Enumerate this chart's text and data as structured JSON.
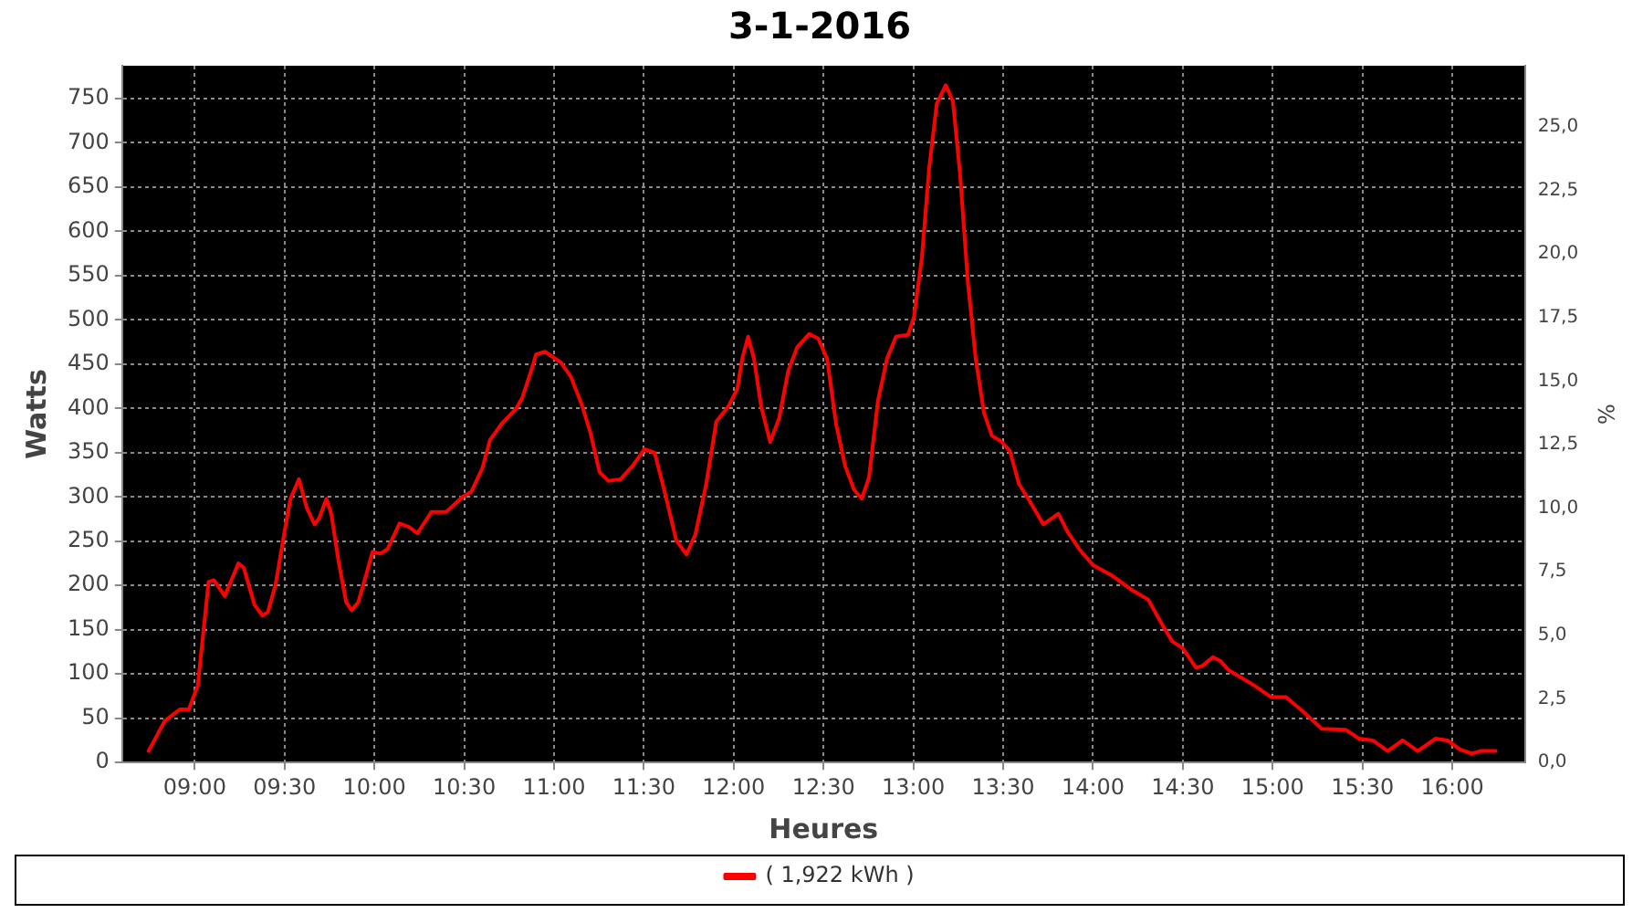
{
  "chart_data": {
    "type": "line",
    "title": "3-1-2016",
    "xlabel": "Heures",
    "ylabel": "Watts",
    "y2label": "%",
    "xlim": [
      8.596,
      16.404
    ],
    "xticks": [
      {
        "value": 9,
        "label": "09:00"
      },
      {
        "value": 9.5,
        "label": "09:30"
      },
      {
        "value": 10,
        "label": "10:00"
      },
      {
        "value": 10.5,
        "label": "10:30"
      },
      {
        "value": 11,
        "label": "11:00"
      },
      {
        "value": 11.5,
        "label": "11:30"
      },
      {
        "value": 12,
        "label": "12:00"
      },
      {
        "value": 12.5,
        "label": "12:30"
      },
      {
        "value": 13,
        "label": "13:00"
      },
      {
        "value": 13.5,
        "label": "13:30"
      },
      {
        "value": 14,
        "label": "14:00"
      },
      {
        "value": 14.5,
        "label": "14:30"
      },
      {
        "value": 15,
        "label": "15:00"
      },
      {
        "value": 15.5,
        "label": "15:30"
      },
      {
        "value": 16,
        "label": "16:00"
      }
    ],
    "ylim": [
      0,
      787
    ],
    "yticks": [
      0,
      50,
      100,
      150,
      200,
      250,
      300,
      350,
      400,
      450,
      500,
      550,
      600,
      650,
      700,
      750
    ],
    "y2lim": [
      0,
      27.4
    ],
    "y2ticks": [
      {
        "value": 0,
        "label": "0,0"
      },
      {
        "value": 2.5,
        "label": "2,5"
      },
      {
        "value": 5,
        "label": "5,0"
      },
      {
        "value": 7.5,
        "label": "7,5"
      },
      {
        "value": 10,
        "label": "10,0"
      },
      {
        "value": 12.5,
        "label": "12,5"
      },
      {
        "value": 15,
        "label": "15,0"
      },
      {
        "value": 17.5,
        "label": "17,5"
      },
      {
        "value": 20,
        "label": "20,0"
      },
      {
        "value": 22.5,
        "label": "22,5"
      },
      {
        "value": 25,
        "label": "25,0"
      }
    ],
    "grid": true,
    "legend": "bottom",
    "marker": "none",
    "line_style": "solid",
    "series": [
      {
        "name": "( 1,922 kWh )",
        "color": "#ff0000",
        "x": [
          8.743,
          8.833,
          8.917,
          8.967,
          9.017,
          9.077,
          9.107,
          9.167,
          9.243,
          9.273,
          9.333,
          9.377,
          9.407,
          9.45,
          9.5,
          9.533,
          9.58,
          9.623,
          9.667,
          9.693,
          9.733,
          9.76,
          9.8,
          9.843,
          9.873,
          9.91,
          9.957,
          9.99,
          10.033,
          10.073,
          10.14,
          10.193,
          10.24,
          10.317,
          10.4,
          10.49,
          10.54,
          10.6,
          10.643,
          10.71,
          10.79,
          10.823,
          10.867,
          10.9,
          10.95,
          11.037,
          11.093,
          11.153,
          11.203,
          11.253,
          11.303,
          11.37,
          11.437,
          11.503,
          11.56,
          11.62,
          11.68,
          11.737,
          11.787,
          11.847,
          11.903,
          11.97,
          12.02,
          12.047,
          12.08,
          12.113,
          12.153,
          12.203,
          12.253,
          12.303,
          12.353,
          12.42,
          12.47,
          12.52,
          12.57,
          12.62,
          12.67,
          12.713,
          12.753,
          12.803,
          12.853,
          12.903,
          12.97,
          13.003,
          13.047,
          13.087,
          13.13,
          13.18,
          13.22,
          13.26,
          13.303,
          13.347,
          13.393,
          13.437,
          13.487,
          13.537,
          13.587,
          13.657,
          13.723,
          13.807,
          13.857,
          13.923,
          14.0,
          14.107,
          14.223,
          14.307,
          14.39,
          14.44,
          14.5,
          14.573,
          14.607,
          14.667,
          14.707,
          14.757,
          14.89,
          14.99,
          15.073,
          15.173,
          15.273,
          15.407,
          15.48,
          15.557,
          15.64,
          15.723,
          15.807,
          15.907,
          15.973,
          16.04,
          16.107,
          16.157,
          16.24
        ],
        "values": [
          13,
          47,
          60,
          60,
          87,
          204,
          206,
          188,
          225,
          220,
          178,
          166,
          170,
          201,
          261,
          298,
          320,
          288,
          269,
          276,
          298,
          281,
          228,
          181,
          172,
          181,
          214,
          238,
          236,
          241,
          270,
          266,
          259,
          283,
          283,
          300,
          306,
          332,
          364,
          383,
          400,
          412,
          439,
          461,
          464,
          452,
          436,
          405,
          372,
          328,
          318,
          320,
          335,
          354,
          350,
          302,
          251,
          235,
          258,
          315,
          385,
          402,
          422,
          456,
          481,
          456,
          402,
          362,
          389,
          442,
          469,
          484,
          479,
          456,
          382,
          335,
          308,
          298,
          322,
          409,
          456,
          481,
          483,
          503,
          570,
          670,
          744,
          765,
          747,
          664,
          543,
          456,
          395,
          369,
          363,
          352,
          315,
          292,
          269,
          281,
          261,
          241,
          223,
          211,
          194,
          184,
          154,
          137,
          129,
          107,
          109,
          119,
          115,
          104,
          88,
          74,
          74,
          57,
          38,
          37,
          27,
          25,
          13,
          25,
          13,
          27,
          25,
          15,
          10,
          13,
          13
        ]
      }
    ]
  }
}
